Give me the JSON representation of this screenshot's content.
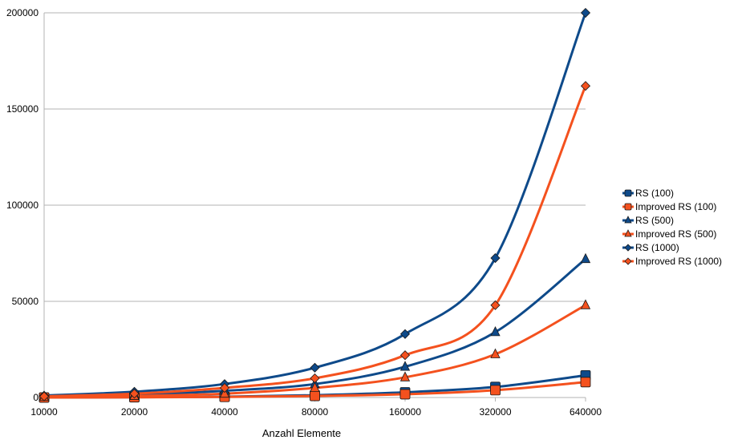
{
  "chart_data": {
    "type": "line",
    "categories": [
      "10000",
      "20000",
      "40000",
      "80000",
      "160000",
      "320000",
      "640000"
    ],
    "xlabel": "Anzahl Elemente",
    "ylabel": "",
    "ylim": [
      0,
      200000
    ],
    "yticks": [
      "0",
      "50000",
      "100000",
      "150000",
      "200000"
    ],
    "grid": "horizontal",
    "legend_position": "right",
    "series": [
      {
        "name": "RS (100)",
        "color": "#0e4a8a",
        "marker": "square",
        "values": [
          0,
          150,
          400,
          1200,
          2700,
          5500,
          11500
        ]
      },
      {
        "name": "Improved RS (100)",
        "color": "#f4511e",
        "marker": "square",
        "values": [
          0,
          120,
          300,
          800,
          1700,
          3800,
          8000
        ]
      },
      {
        "name": "RS (500)",
        "color": "#0e4a8a",
        "marker": "triangle",
        "values": [
          500,
          1500,
          3500,
          7000,
          16000,
          34000,
          72000
        ]
      },
      {
        "name": "Improved RS (500)",
        "color": "#f4511e",
        "marker": "triangle",
        "values": [
          300,
          800,
          2000,
          5000,
          10500,
          22500,
          48000
        ]
      },
      {
        "name": "RS (1000)",
        "color": "#0e4a8a",
        "marker": "diamond",
        "values": [
          1000,
          3000,
          7000,
          15500,
          33000,
          72500,
          200000
        ]
      },
      {
        "name": "Improved RS (1000)",
        "color": "#f4511e",
        "marker": "diamond",
        "values": [
          600,
          2000,
          5000,
          10000,
          22000,
          48000,
          162000
        ]
      }
    ]
  }
}
